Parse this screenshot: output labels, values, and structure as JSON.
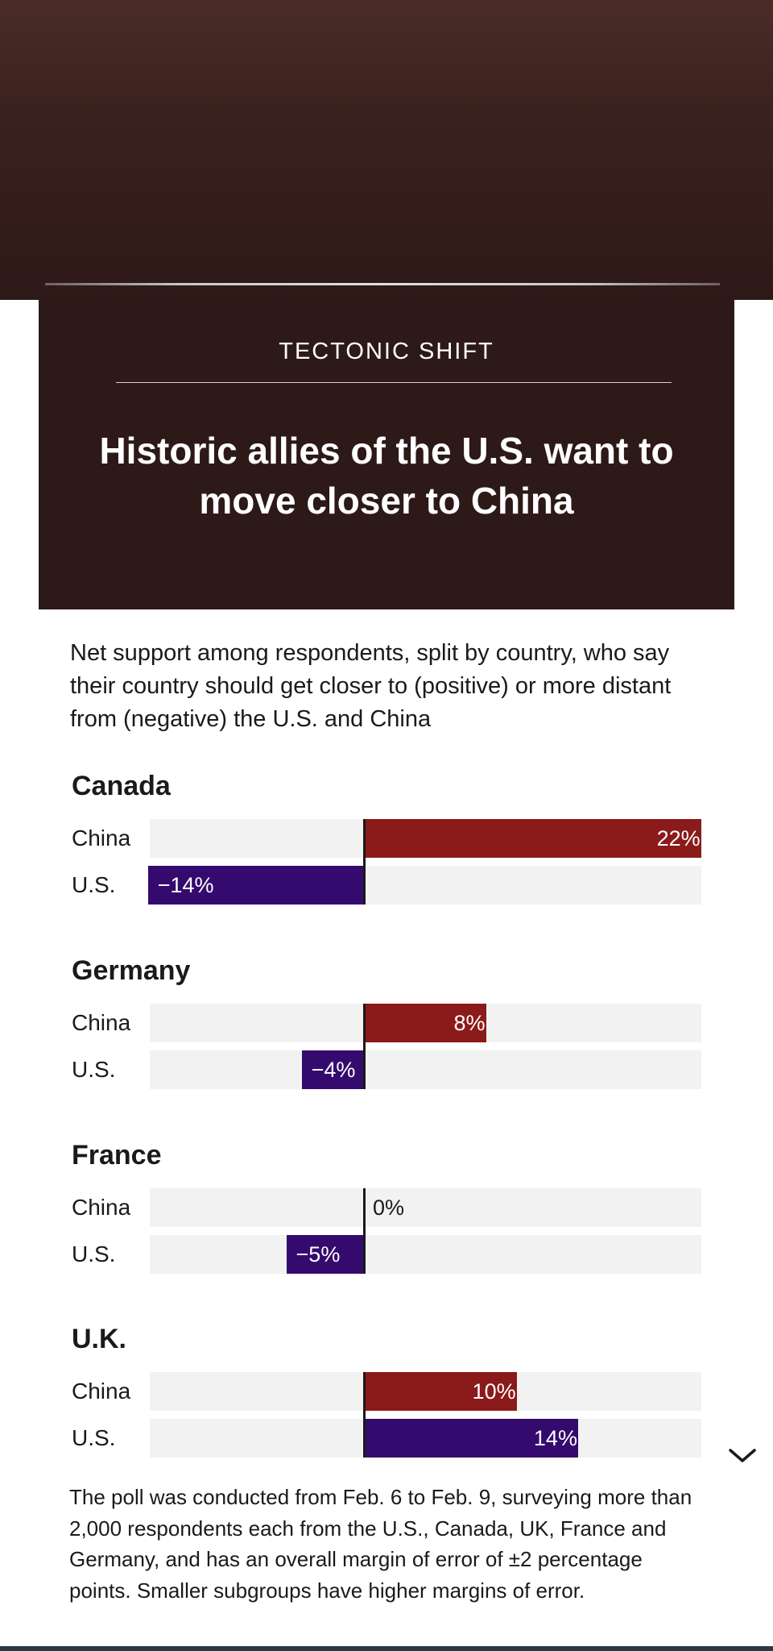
{
  "header": {
    "kicker": "TECTONIC SHIFT",
    "headline": "Historic allies of the U.S. want to move closer to China"
  },
  "intro": "Net support among respondents, split by country, who say their country should get closer to (positive) or more distant from (negative) the U.S. and China",
  "chart_data": {
    "type": "bar",
    "orientation": "horizontal",
    "title": "Historic allies of the U.S. want to move closer to China",
    "xlim": [
      -22,
      22
    ],
    "unit": "%",
    "colors": {
      "China": "#8b1a1a",
      "U.S.": "#350a6e"
    },
    "groups": [
      {
        "name": "Canada",
        "rows": [
          {
            "label": "China",
            "value": 22,
            "display": "22%"
          },
          {
            "label": "U.S.",
            "value": -14,
            "display": "−14%"
          }
        ]
      },
      {
        "name": "Germany",
        "rows": [
          {
            "label": "China",
            "value": 8,
            "display": "8%"
          },
          {
            "label": "U.S.",
            "value": -4,
            "display": "−4%"
          }
        ]
      },
      {
        "name": "France",
        "rows": [
          {
            "label": "China",
            "value": 0,
            "display": "0%"
          },
          {
            "label": "U.S.",
            "value": -5,
            "display": "−5%"
          }
        ]
      },
      {
        "name": "U.K.",
        "rows": [
          {
            "label": "China",
            "value": 10,
            "display": "10%"
          },
          {
            "label": "U.S.",
            "value": 14,
            "display": "14%"
          }
        ]
      }
    ]
  },
  "footnote": "The poll was conducted from Feb. 6 to Feb. 9, surveying more than 2,000 respondents each from the U.S., Canada, UK, France and Germany, and has an overall margin of error of ±2 percentage points. Smaller subgroups have higher margins of error.",
  "icons": {
    "scroll": "chevron-down-icon"
  }
}
